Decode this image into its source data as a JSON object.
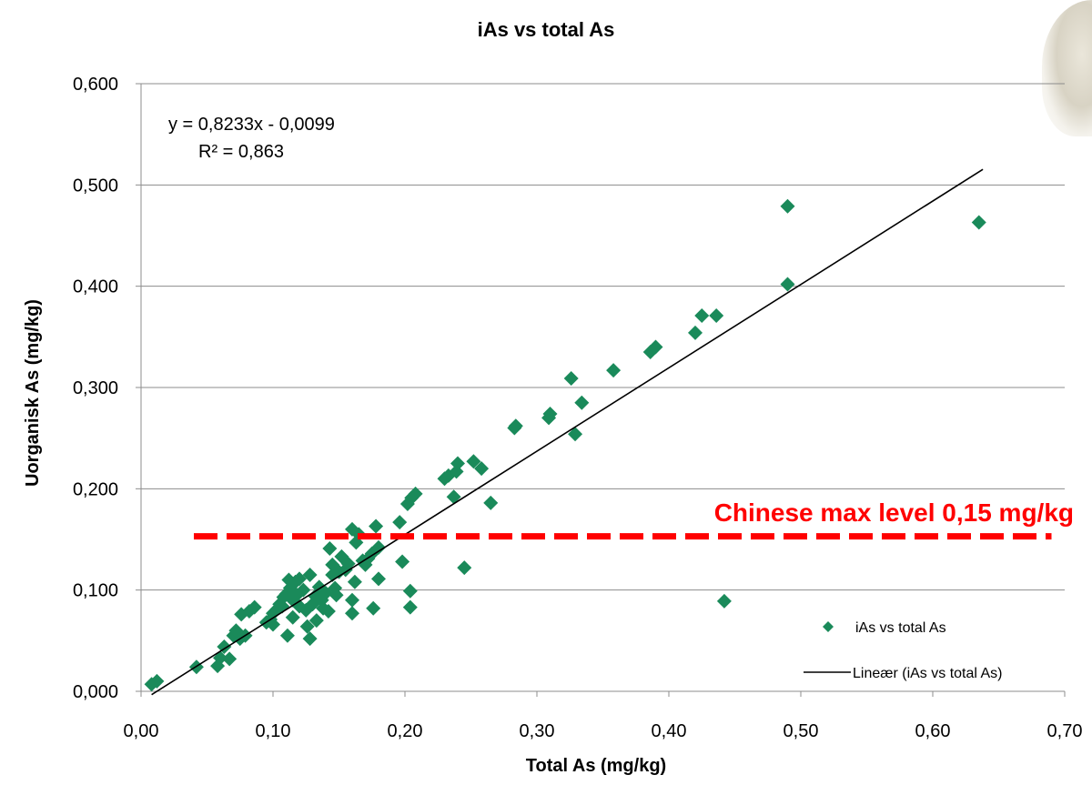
{
  "chart_data": {
    "type": "scatter",
    "title": "iAs vs total As",
    "xlabel": "Total As (mg/kg)",
    "ylabel": "Uorganisk As (mg/kg)",
    "xlim": [
      0,
      0.7
    ],
    "ylim": [
      0,
      0.6
    ],
    "x_ticks": [
      "0,00",
      "0,10",
      "0,20",
      "0,30",
      "0,40",
      "0,50",
      "0,60",
      "0,70"
    ],
    "y_ticks": [
      "0,000",
      "0,100",
      "0,200",
      "0,300",
      "0,400",
      "0,500",
      "0,600"
    ],
    "grid": "horizontal",
    "legend_position": "bottom-right",
    "series": [
      {
        "name": "iAs vs total As",
        "color": "#1a8a5a",
        "marker": "diamond",
        "points": [
          [
            0.008,
            0.007
          ],
          [
            0.012,
            0.01
          ],
          [
            0.042,
            0.024
          ],
          [
            0.058,
            0.025
          ],
          [
            0.06,
            0.033
          ],
          [
            0.063,
            0.044
          ],
          [
            0.067,
            0.032
          ],
          [
            0.07,
            0.055
          ],
          [
            0.072,
            0.06
          ],
          [
            0.075,
            0.052
          ],
          [
            0.076,
            0.076
          ],
          [
            0.079,
            0.055
          ],
          [
            0.082,
            0.079
          ],
          [
            0.086,
            0.083
          ],
          [
            0.095,
            0.068
          ],
          [
            0.098,
            0.071
          ],
          [
            0.1,
            0.066
          ],
          [
            0.1,
            0.077
          ],
          [
            0.103,
            0.081
          ],
          [
            0.105,
            0.086
          ],
          [
            0.107,
            0.084
          ],
          [
            0.108,
            0.093
          ],
          [
            0.11,
            0.096
          ],
          [
            0.111,
            0.055
          ],
          [
            0.112,
            0.11
          ],
          [
            0.113,
            0.102
          ],
          [
            0.115,
            0.09
          ],
          [
            0.115,
            0.073
          ],
          [
            0.117,
            0.108
          ],
          [
            0.118,
            0.095
          ],
          [
            0.12,
            0.111
          ],
          [
            0.12,
            0.084
          ],
          [
            0.123,
            0.1
          ],
          [
            0.125,
            0.08
          ],
          [
            0.126,
            0.064
          ],
          [
            0.128,
            0.052
          ],
          [
            0.128,
            0.115
          ],
          [
            0.13,
            0.086
          ],
          [
            0.132,
            0.094
          ],
          [
            0.133,
            0.07
          ],
          [
            0.135,
            0.103
          ],
          [
            0.137,
            0.09
          ],
          [
            0.138,
            0.082
          ],
          [
            0.14,
            0.097
          ],
          [
            0.142,
            0.079
          ],
          [
            0.143,
            0.141
          ],
          [
            0.145,
            0.125
          ],
          [
            0.145,
            0.115
          ],
          [
            0.147,
            0.102
          ],
          [
            0.148,
            0.095
          ],
          [
            0.15,
            0.118
          ],
          [
            0.152,
            0.133
          ],
          [
            0.155,
            0.12
          ],
          [
            0.157,
            0.126
          ],
          [
            0.16,
            0.16
          ],
          [
            0.16,
            0.09
          ],
          [
            0.16,
            0.077
          ],
          [
            0.162,
            0.108
          ],
          [
            0.163,
            0.147
          ],
          [
            0.165,
            0.155
          ],
          [
            0.168,
            0.129
          ],
          [
            0.17,
            0.125
          ],
          [
            0.172,
            0.131
          ],
          [
            0.175,
            0.136
          ],
          [
            0.176,
            0.082
          ],
          [
            0.178,
            0.163
          ],
          [
            0.18,
            0.111
          ],
          [
            0.18,
            0.142
          ],
          [
            0.196,
            0.167
          ],
          [
            0.198,
            0.128
          ],
          [
            0.202,
            0.185
          ],
          [
            0.204,
            0.083
          ],
          [
            0.204,
            0.099
          ],
          [
            0.205,
            0.191
          ],
          [
            0.208,
            0.195
          ],
          [
            0.23,
            0.21
          ],
          [
            0.233,
            0.213
          ],
          [
            0.237,
            0.192
          ],
          [
            0.239,
            0.217
          ],
          [
            0.24,
            0.225
          ],
          [
            0.245,
            0.122
          ],
          [
            0.252,
            0.227
          ],
          [
            0.258,
            0.22
          ],
          [
            0.265,
            0.186
          ],
          [
            0.283,
            0.26
          ],
          [
            0.284,
            0.262
          ],
          [
            0.309,
            0.27
          ],
          [
            0.31,
            0.274
          ],
          [
            0.326,
            0.309
          ],
          [
            0.329,
            0.254
          ],
          [
            0.334,
            0.285
          ],
          [
            0.358,
            0.317
          ],
          [
            0.386,
            0.335
          ],
          [
            0.39,
            0.34
          ],
          [
            0.42,
            0.354
          ],
          [
            0.425,
            0.371
          ],
          [
            0.436,
            0.371
          ],
          [
            0.442,
            0.089
          ],
          [
            0.49,
            0.479
          ],
          [
            0.49,
            0.402
          ],
          [
            0.635,
            0.463
          ]
        ]
      }
    ],
    "trendline": {
      "name": "Lineær (iAs vs total As)",
      "slope": 0.8233,
      "intercept": -0.0099,
      "x_range": [
        0.008,
        0.638
      ],
      "color": "#000000"
    },
    "equation_label": "y = 0,8233x - 0,0099",
    "r2_label": "R² = 0,863",
    "max_level": {
      "label": "Chinese max level 0,15 mg/kg",
      "value": 0.153,
      "x_range": [
        0.04,
        0.69
      ],
      "color": "#ff0000"
    }
  }
}
